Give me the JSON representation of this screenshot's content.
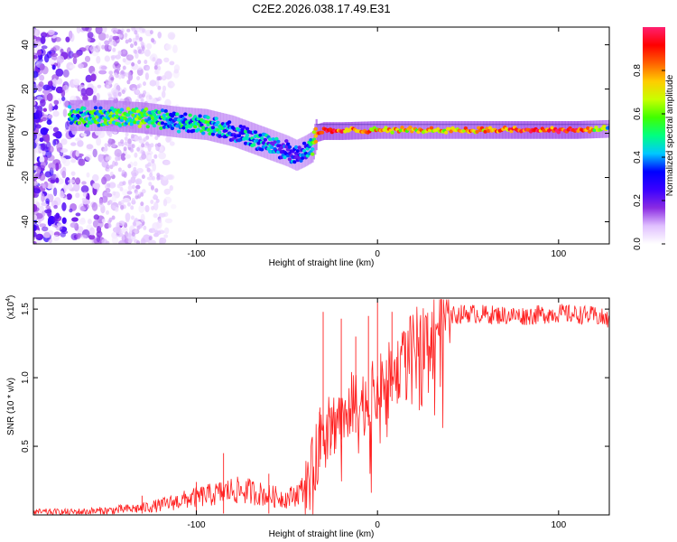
{
  "figure": {
    "title": "C2E2.2026.038.17.49.E31"
  },
  "chart_data": [
    {
      "type": "heatmap",
      "name": "spectrogram",
      "title": "C2E2.2026.038.17.49.E31",
      "xlabel": "Height of straight line (km)",
      "ylabel": "Frequency (Hz)",
      "xlim": [
        -190,
        128
      ],
      "ylim": [
        -50,
        48
      ],
      "xticks": [
        -100,
        0,
        100
      ],
      "xtick_labels": [
        "-100",
        "0",
        "100"
      ],
      "yticks": [
        -40,
        -20,
        0,
        20,
        40
      ],
      "ytick_labels": [
        "-40",
        "-20",
        "0",
        "20",
        "40"
      ],
      "colorbar": {
        "label": "Normalized spectral amplitude",
        "range": [
          0,
          1
        ],
        "ticks": [
          0.0,
          0.2,
          0.4,
          0.6,
          0.8
        ],
        "tick_labels": [
          "0.0",
          "0.2",
          "0.4",
          "0.6",
          "0.8"
        ],
        "colormap": [
          "#ffffff",
          "#e0c0ff",
          "#8a2be2",
          "#3a00ff",
          "#0000ff",
          "#00c8ff",
          "#00ff80",
          "#40ff00",
          "#c8ff00",
          "#ffcc00",
          "#ff6000",
          "#ff0000",
          "#ff2070"
        ]
      },
      "ridge": {
        "x": [
          -170,
          -150,
          -130,
          -110,
          -95,
          -80,
          -70,
          -60,
          -50,
          -45,
          -40,
          -36,
          -34,
          -30,
          -20,
          0,
          20,
          50,
          80,
          110,
          128
        ],
        "y": [
          8,
          8,
          7,
          5,
          4,
          1,
          -2,
          -5,
          -8,
          -10,
          -8,
          -6,
          0,
          1,
          1,
          1.5,
          1.5,
          1.5,
          1.5,
          1.5,
          2
        ],
        "amplitude": [
          0.45,
          0.5,
          0.55,
          0.4,
          0.45,
          0.35,
          0.4,
          0.35,
          0.3,
          0.3,
          0.35,
          0.5,
          0.85,
          0.9,
          0.85,
          0.75,
          0.7,
          0.75,
          0.85,
          0.9,
          0.5
        ]
      }
    },
    {
      "type": "line",
      "name": "snr",
      "xlabel": "Height of straight line (km)",
      "ylabel": "SNR (10 * v/v)",
      "scale_label": "(x10",
      "scale_exponent": "4",
      "xlim": [
        -190,
        128
      ],
      "ylim": [
        0,
        1.58
      ],
      "xticks": [
        -100,
        0,
        100
      ],
      "xtick_labels": [
        "-100",
        "0",
        "100"
      ],
      "yticks": [
        0.5,
        1.0,
        1.5
      ],
      "ytick_labels": [
        "0.5",
        "1.0",
        "1.5"
      ],
      "line_color": "#ff2020",
      "series": [
        {
          "name": "SNR",
          "x": [
            -190,
            -170,
            -150,
            -140,
            -130,
            -120,
            -110,
            -100,
            -90,
            -80,
            -70,
            -60,
            -50,
            -45,
            -40,
            -35,
            -32,
            -30,
            -28,
            -25,
            -20,
            -15,
            -10,
            -5,
            0,
            5,
            10,
            15,
            20,
            25,
            30,
            40,
            50,
            60,
            80,
            100,
            110,
            120,
            128
          ],
          "y": [
            0.02,
            0.02,
            0.03,
            0.04,
            0.05,
            0.07,
            0.1,
            0.13,
            0.15,
            0.18,
            0.17,
            0.14,
            0.12,
            0.15,
            0.2,
            0.35,
            0.55,
            0.7,
            0.6,
            0.65,
            0.75,
            0.8,
            0.8,
            0.85,
            0.9,
            1.0,
            1.05,
            1.15,
            1.25,
            1.3,
            1.38,
            1.45,
            1.47,
            1.46,
            1.45,
            1.47,
            1.46,
            1.45,
            1.42
          ]
        }
      ],
      "spikes": {
        "x": [
          -130,
          -100,
          -85,
          -60,
          -32,
          -30,
          -26,
          -20,
          -12,
          -5,
          0,
          8
        ],
        "y": [
          0.14,
          0.24,
          0.45,
          0.3,
          0.75,
          1.48,
          0.78,
          1.43,
          1.3,
          1.45,
          1.55,
          1.48
        ]
      }
    }
  ]
}
